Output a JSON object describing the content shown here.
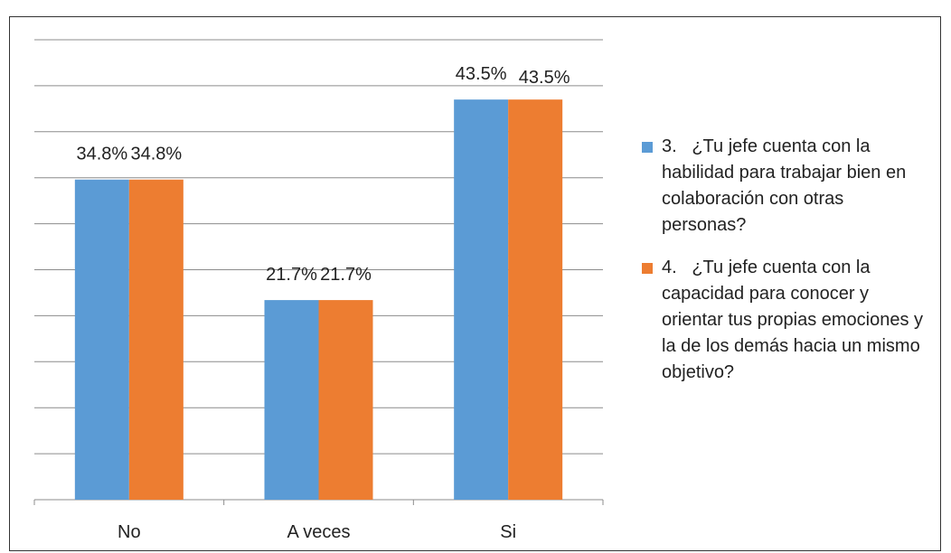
{
  "chart_data": {
    "type": "bar",
    "categories": [
      "No",
      "A veces",
      "Si"
    ],
    "series": [
      {
        "name": "3.\t¿Tu jefe cuenta con la habilidad para trabajar bien en colaboración con otras personas?",
        "color": "#5b9bd5",
        "values": [
          34.8,
          21.7,
          43.5
        ],
        "value_labels": [
          "34.8%",
          "21.7%",
          "43.5%"
        ]
      },
      {
        "name": "4.\t¿Tu jefe cuenta con la capacidad para conocer y orientar tus propias emociones y la de los demás hacia un mismo objetivo?",
        "color": "#ed7d31",
        "values": [
          34.8,
          21.7,
          43.5
        ],
        "value_labels": [
          "34.8%",
          "21.7%",
          "43.5%"
        ]
      }
    ],
    "ylim": [
      0,
      50
    ],
    "yticks": [
      0,
      5,
      10,
      15,
      20,
      25,
      30,
      35,
      40,
      45,
      50
    ],
    "grid": true,
    "legend": "right"
  }
}
